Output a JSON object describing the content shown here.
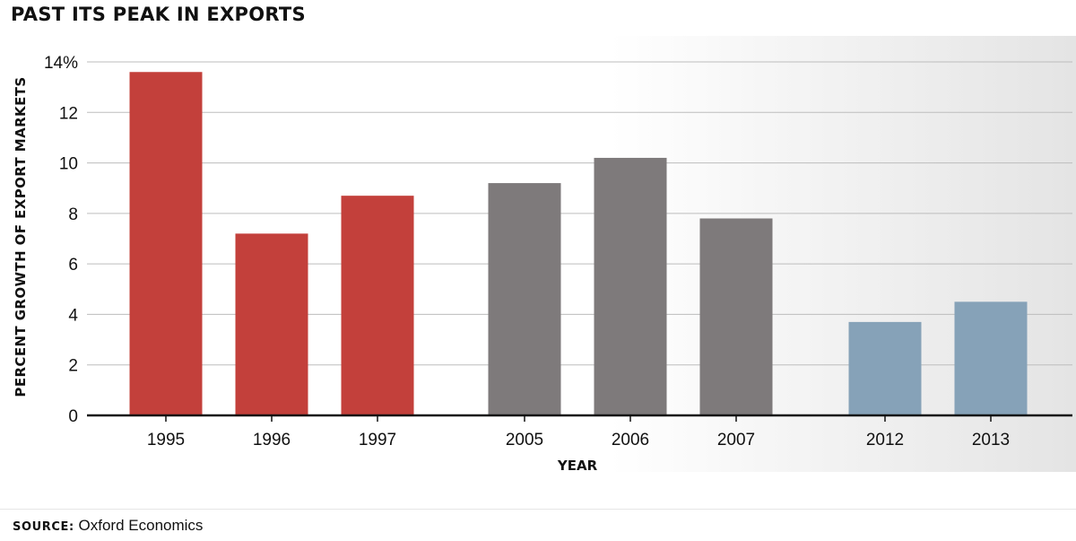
{
  "chart_data": {
    "type": "bar",
    "title": "PAST ITS PEAK IN EXPORTS",
    "ylabel": "PERCENT GROWTH OF EXPORT MARKETS",
    "xlabel": "YEAR",
    "ylim": [
      0,
      14
    ],
    "yticks": [
      "0",
      "2",
      "4",
      "6",
      "8",
      "10",
      "12",
      "14%"
    ],
    "grid": true,
    "categories": [
      "1995",
      "1996",
      "1997",
      "2005",
      "2006",
      "2007",
      "2012",
      "2013"
    ],
    "values": [
      13.6,
      7.2,
      8.7,
      9.2,
      10.2,
      7.8,
      3.7,
      4.5
    ],
    "colors": [
      "#c3403b",
      "#c3403b",
      "#c3403b",
      "#7e7a7b",
      "#7e7a7b",
      "#7e7a7b",
      "#86a2b8",
      "#86a2b8"
    ]
  },
  "source": {
    "label": "SOURCE:",
    "text": " Oxford Economics"
  }
}
